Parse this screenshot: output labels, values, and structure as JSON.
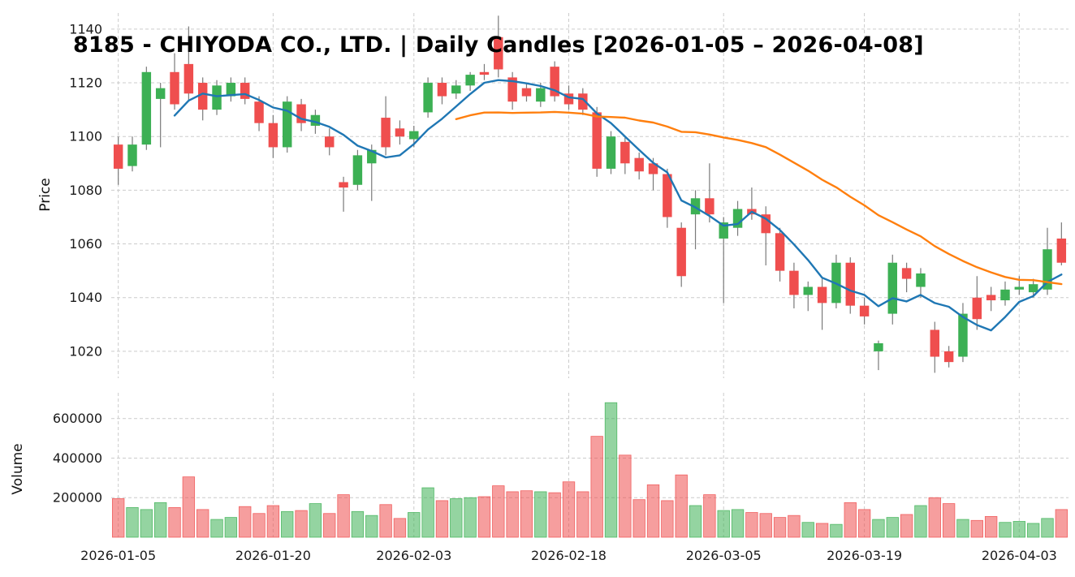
{
  "colors": {
    "up": "#3cb054",
    "down": "#ef4e4e",
    "wick": "#7a7a7a",
    "grid": "#cccccc",
    "text": "#111111",
    "ma_short": "#1f77b4",
    "ma_long": "#ff7f0e"
  },
  "chart_data": {
    "type": "candlestick",
    "title": "8185 - CHIYODA CO., LTD. | Daily Candles [2026-01-05 – 2026-04-08]",
    "grid": true,
    "legend_position": "none",
    "price_axis": {
      "label": "Price",
      "range": [
        1010,
        1146
      ],
      "ticks": [
        1020,
        1040,
        1060,
        1080,
        1100,
        1120,
        1140
      ]
    },
    "volume_axis": {
      "label": "Volume",
      "range": [
        0,
        730000
      ],
      "ticks": [
        200000,
        400000,
        600000
      ]
    },
    "x_axis": {
      "tick_labels": [
        "2026-01-05",
        "2026-01-20",
        "2026-02-03",
        "2026-02-18",
        "2026-03-05",
        "2026-03-19",
        "2026-04-03"
      ]
    },
    "overlays": [
      {
        "name": "SMA-5",
        "window": 5,
        "color": "#1f77b4"
      },
      {
        "name": "SMA-25",
        "window": 25,
        "color": "#ff7f0e"
      }
    ],
    "candles": {
      "columns": [
        "date",
        "open",
        "high",
        "low",
        "close",
        "volume"
      ],
      "rows": [
        [
          "2026-01-05",
          1097,
          1100,
          1082,
          1088,
          195000
        ],
        [
          "2026-01-06",
          1089,
          1100,
          1087,
          1097,
          150000
        ],
        [
          "2026-01-07",
          1097,
          1126,
          1095,
          1124,
          140000
        ],
        [
          "2026-01-08",
          1114,
          1120,
          1096,
          1118,
          175000
        ],
        [
          "2026-01-09",
          1124,
          1131,
          1110,
          1112,
          150000
        ],
        [
          "2026-01-12",
          1127,
          1141,
          1113,
          1116,
          305000
        ],
        [
          "2026-01-13",
          1120,
          1122,
          1106,
          1110,
          140000
        ],
        [
          "2026-01-14",
          1110,
          1121,
          1108,
          1119,
          90000
        ],
        [
          "2026-01-15",
          1115,
          1122,
          1113,
          1120,
          100000
        ],
        [
          "2026-01-16",
          1120,
          1122,
          1112,
          1114,
          155000
        ],
        [
          "2026-01-19",
          1113,
          1115,
          1102,
          1105,
          120000
        ],
        [
          "2026-01-20",
          1105,
          1108,
          1092,
          1096,
          160000
        ],
        [
          "2026-01-21",
          1096,
          1115,
          1094,
          1113,
          130000
        ],
        [
          "2026-01-22",
          1112,
          1114,
          1102,
          1105,
          135000
        ],
        [
          "2026-01-23",
          1104,
          1110,
          1101,
          1108,
          170000
        ],
        [
          "2026-01-26",
          1100,
          1103,
          1093,
          1096,
          120000
        ],
        [
          "2026-01-27",
          1083,
          1085,
          1072,
          1081,
          215000
        ],
        [
          "2026-01-28",
          1082,
          1095,
          1080,
          1093,
          130000
        ],
        [
          "2026-01-29",
          1090,
          1097,
          1076,
          1095,
          110000
        ],
        [
          "2026-01-30",
          1107,
          1115,
          1093,
          1096,
          165000
        ],
        [
          "2026-02-02",
          1103,
          1106,
          1097,
          1100,
          95000
        ],
        [
          "2026-02-03",
          1099,
          1104,
          1096,
          1102,
          125000
        ],
        [
          "2026-02-04",
          1109,
          1122,
          1107,
          1120,
          250000
        ],
        [
          "2026-02-05",
          1120,
          1122,
          1112,
          1115,
          185000
        ],
        [
          "2026-02-06",
          1116,
          1121,
          1114,
          1119,
          195000
        ],
        [
          "2026-02-09",
          1119,
          1124,
          1117,
          1123,
          200000
        ],
        [
          "2026-02-10",
          1124,
          1127,
          1121,
          1123,
          205000
        ],
        [
          "2026-02-11",
          1137,
          1145,
          1122,
          1125,
          260000
        ],
        [
          "2026-02-12",
          1122,
          1124,
          1110,
          1113,
          230000
        ],
        [
          "2026-02-13",
          1118,
          1120,
          1113,
          1115,
          235000
        ],
        [
          "2026-02-16",
          1113,
          1120,
          1111,
          1118,
          230000
        ],
        [
          "2026-02-17",
          1126,
          1128,
          1113,
          1115,
          225000
        ],
        [
          "2026-02-18",
          1116,
          1119,
          1110,
          1112,
          280000
        ],
        [
          "2026-02-19",
          1116,
          1118,
          1108,
          1110,
          230000
        ],
        [
          "2026-02-20",
          1109,
          1111,
          1085,
          1088,
          510000
        ],
        [
          "2026-02-23",
          1088,
          1102,
          1086,
          1100,
          680000
        ],
        [
          "2026-02-24",
          1098,
          1100,
          1086,
          1090,
          415000
        ],
        [
          "2026-02-25",
          1092,
          1094,
          1084,
          1087,
          190000
        ],
        [
          "2026-02-26",
          1090,
          1092,
          1080,
          1086,
          265000
        ],
        [
          "2026-02-27",
          1086,
          1088,
          1066,
          1070,
          185000
        ],
        [
          "2026-03-02",
          1066,
          1068,
          1044,
          1048,
          315000
        ],
        [
          "2026-03-03",
          1071,
          1080,
          1058,
          1077,
          160000
        ],
        [
          "2026-03-04",
          1077,
          1090,
          1068,
          1071,
          215000
        ],
        [
          "2026-03-05",
          1062,
          1070,
          1038,
          1068,
          135000
        ],
        [
          "2026-03-06",
          1066,
          1076,
          1063,
          1073,
          140000
        ],
        [
          "2026-03-09",
          1073,
          1081,
          1069,
          1071,
          125000
        ],
        [
          "2026-03-10",
          1071,
          1074,
          1052,
          1064,
          120000
        ],
        [
          "2026-03-11",
          1064,
          1066,
          1046,
          1050,
          100000
        ],
        [
          "2026-03-12",
          1050,
          1053,
          1036,
          1041,
          110000
        ],
        [
          "2026-03-13",
          1041,
          1046,
          1035,
          1044,
          75000
        ],
        [
          "2026-03-16",
          1044,
          1047,
          1028,
          1038,
          70000
        ],
        [
          "2026-03-17",
          1038,
          1056,
          1036,
          1053,
          65000
        ],
        [
          "2026-03-18",
          1053,
          1055,
          1034,
          1037,
          175000
        ],
        [
          "2026-03-19",
          1037,
          1040,
          1030,
          1033,
          140000
        ],
        [
          "2026-03-20",
          1020,
          1024,
          1013,
          1023,
          90000
        ],
        [
          "2026-03-23",
          1034,
          1056,
          1030,
          1053,
          100000
        ],
        [
          "2026-03-24",
          1051,
          1053,
          1042,
          1047,
          115000
        ],
        [
          "2026-03-25",
          1044,
          1051,
          1040,
          1049,
          160000
        ],
        [
          "2026-03-26",
          1028,
          1031,
          1012,
          1018,
          200000
        ],
        [
          "2026-03-27",
          1020,
          1022,
          1014,
          1016,
          170000
        ],
        [
          "2026-03-30",
          1018,
          1038,
          1016,
          1034,
          90000
        ],
        [
          "2026-03-31",
          1040,
          1048,
          1028,
          1032,
          85000
        ],
        [
          "2026-04-01",
          1041,
          1044,
          1035,
          1039,
          105000
        ],
        [
          "2026-04-02",
          1039,
          1046,
          1037,
          1043,
          75000
        ],
        [
          "2026-04-03",
          1043,
          1048,
          1041,
          1044,
          80000
        ],
        [
          "2026-04-06",
          1042,
          1047,
          1040,
          1045,
          70000
        ],
        [
          "2026-04-07",
          1043,
          1066,
          1041,
          1058,
          95000
        ],
        [
          "2026-04-08",
          1062,
          1068,
          1052,
          1053,
          140000
        ]
      ]
    }
  }
}
